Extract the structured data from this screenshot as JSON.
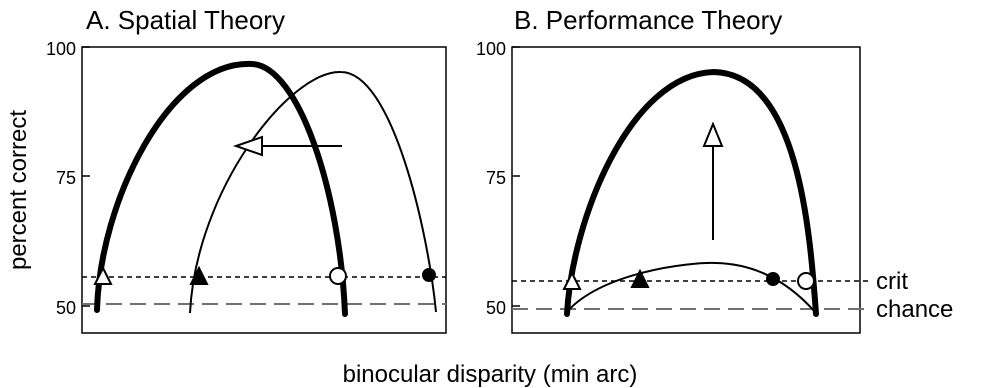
{
  "panels": [
    {
      "title": "A. Spatial Theory",
      "y_ticks": [
        "100",
        "75",
        "50"
      ],
      "arrow_direction": "left"
    },
    {
      "title": "B. Performance Theory",
      "y_ticks": [
        "100",
        "75",
        "50"
      ],
      "arrow_direction": "up"
    }
  ],
  "y_axis_label": "percent correct",
  "x_axis_label": "binocular disparity (min arc)",
  "reference_lines": {
    "crit_label": "crit",
    "chance_label": "chance"
  },
  "colors": {
    "ink": "#000000",
    "chance_line": "#707070",
    "background": "#ffffff"
  }
}
